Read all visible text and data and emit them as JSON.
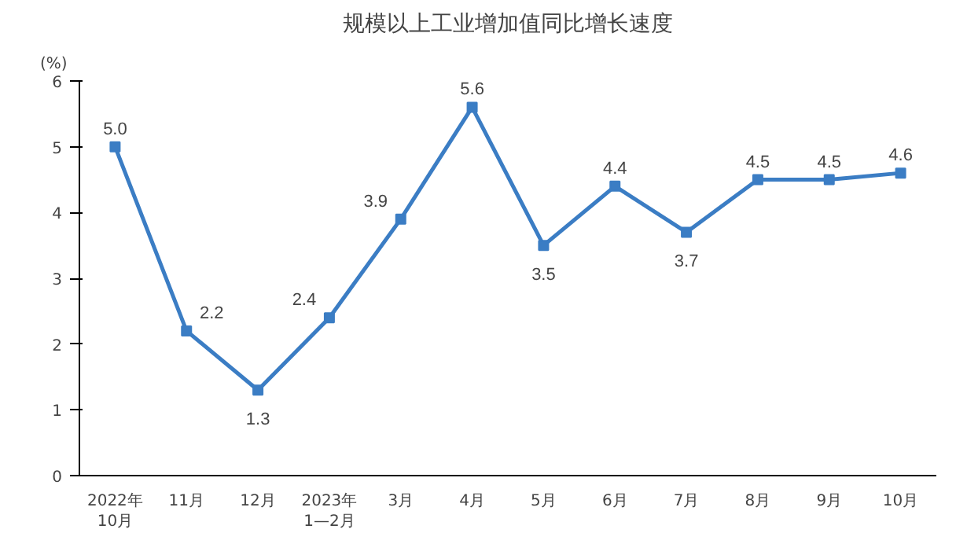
{
  "chart_data": {
    "type": "line",
    "title": "规模以上工业增加值同比增长速度",
    "ylabel": "(%)",
    "categories": [
      "2022年\n10月",
      "11月",
      "12月",
      "2023年\n1—2月",
      "3月",
      "4月",
      "5月",
      "6月",
      "7月",
      "8月",
      "9月",
      "10月"
    ],
    "series": [
      {
        "color": "#3b7dc4",
        "values": [
          5.0,
          2.2,
          1.3,
          2.4,
          3.9,
          5.6,
          3.5,
          4.4,
          3.7,
          4.5,
          4.5,
          4.6
        ]
      }
    ],
    "ylim": [
      0,
      6
    ],
    "yticks": [
      0,
      1,
      2,
      3,
      4,
      5,
      6
    ],
    "value_labels": [
      "5.0",
      "2.2",
      "1.3",
      "2.4",
      "3.9",
      "5.6",
      "3.5",
      "4.4",
      "3.7",
      "4.5",
      "4.5",
      "4.6"
    ],
    "marker": "square",
    "line_style": "solid",
    "grid": false
  }
}
